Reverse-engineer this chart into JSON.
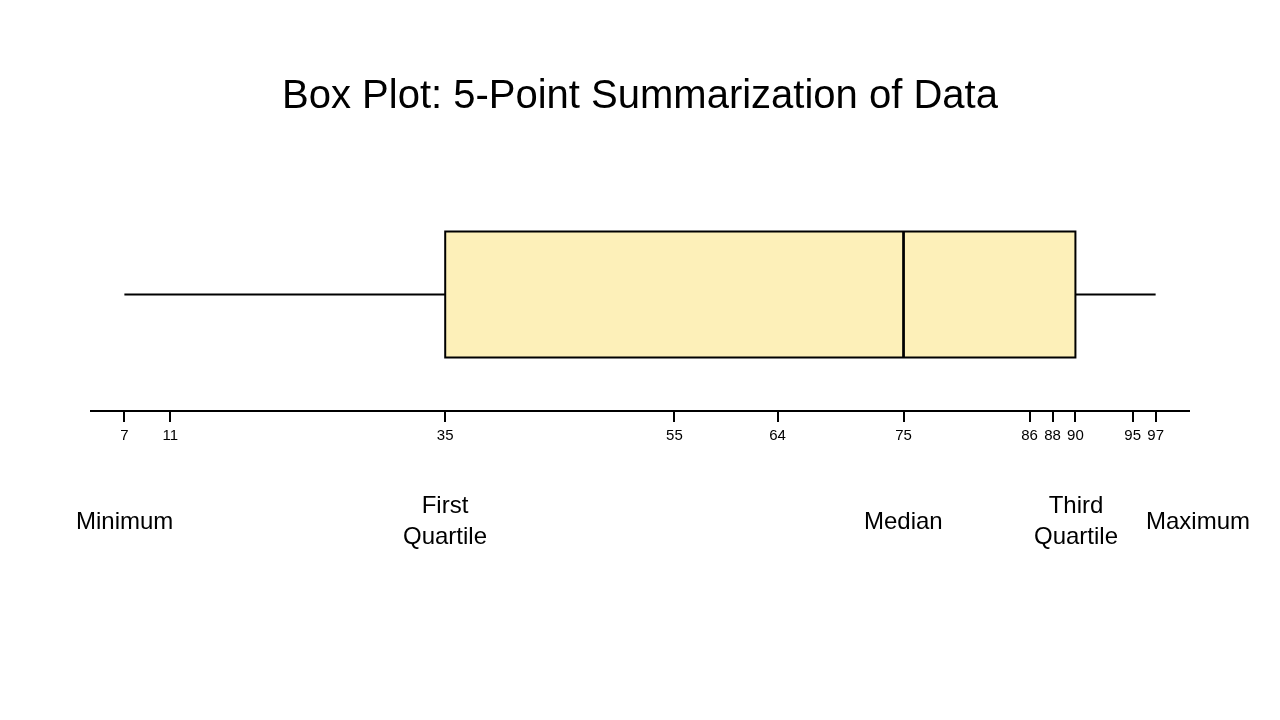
{
  "chart_data": {
    "type": "box",
    "title": "Box Plot: 5-Point Summarization of Data",
    "orientation": "horizontal",
    "tick_labels": "x",
    "series": [
      {
        "color": "#fdf0b9",
        "boxes": [
          {
            "low": 7,
            "q1": 35,
            "median": 75,
            "q3": 90,
            "high": 97
          }
        ]
      }
    ],
    "xlim": [
      4,
      100
    ],
    "xticks": [
      7,
      11,
      35,
      55,
      64,
      75,
      86,
      88,
      90,
      95,
      97
    ],
    "annotations": [
      "Minimum",
      "First\nQuartile",
      "Median",
      "Third\nQuartile",
      "Maximum"
    ]
  }
}
